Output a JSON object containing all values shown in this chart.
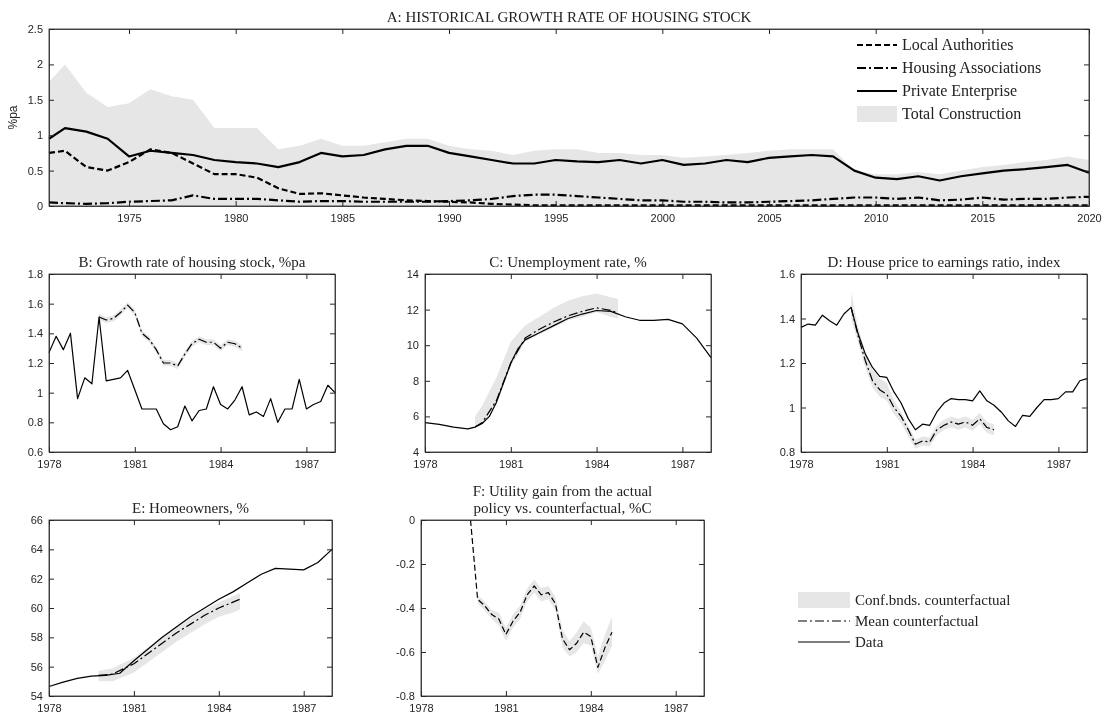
{
  "chart_data": [
    {
      "type": "line",
      "title": "A: HISTORICAL GROWTH RATE OF HOUSING STOCK",
      "ylabel": "%pa",
      "xlim": [
        1971.25,
        2020
      ],
      "ylim": [
        0,
        2.5
      ],
      "xticks": [
        1975,
        1980,
        1985,
        1990,
        1995,
        2000,
        2005,
        2010,
        2015,
        2020
      ],
      "yticks": [
        0,
        0.5,
        1,
        1.5,
        2,
        2.5
      ],
      "legend": "top right",
      "x": [
        1971.25,
        1972,
        1973,
        1974,
        1975,
        1976,
        1977,
        1978,
        1979,
        1980,
        1981,
        1982,
        1983,
        1984,
        1985,
        1986,
        1987,
        1988,
        1989,
        1990,
        1991,
        1992,
        1993,
        1994,
        1995,
        1996,
        1997,
        1998,
        1999,
        2000,
        2001,
        2002,
        2003,
        2004,
        2005,
        2006,
        2007,
        2008,
        2009,
        2010,
        2011,
        2012,
        2013,
        2014,
        2015,
        2016,
        2017,
        2018,
        2019,
        2020
      ],
      "series": [
        {
          "name": "Local Authorities",
          "type": "line",
          "line_style": "dashed",
          "color": "#000000",
          "values": [
            0.75,
            0.78,
            0.55,
            0.5,
            0.62,
            0.8,
            0.75,
            0.6,
            0.45,
            0.45,
            0.4,
            0.25,
            0.17,
            0.18,
            0.15,
            0.12,
            0.1,
            0.08,
            0.07,
            0.06,
            0.05,
            0.03,
            0.02,
            0.01,
            0.01,
            0.01,
            0.01,
            0.01,
            0.01,
            0.01,
            0.01,
            0.01,
            0.01,
            0.01,
            0.01,
            0.01,
            0.01,
            0.01,
            0.01,
            0.01,
            0.01,
            0.01,
            0.01,
            0.01,
            0.01,
            0.01,
            0.01,
            0.01,
            0.01,
            0.01
          ]
        },
        {
          "name": "Housing Associations",
          "type": "line",
          "line_style": "dashdot",
          "color": "#000000",
          "values": [
            0.05,
            0.04,
            0.03,
            0.04,
            0.06,
            0.07,
            0.08,
            0.15,
            0.1,
            0.1,
            0.1,
            0.08,
            0.06,
            0.07,
            0.07,
            0.06,
            0.06,
            0.06,
            0.06,
            0.07,
            0.08,
            0.1,
            0.14,
            0.16,
            0.16,
            0.14,
            0.12,
            0.1,
            0.08,
            0.08,
            0.06,
            0.06,
            0.05,
            0.05,
            0.06,
            0.07,
            0.08,
            0.1,
            0.12,
            0.12,
            0.1,
            0.12,
            0.08,
            0.09,
            0.12,
            0.09,
            0.1,
            0.1,
            0.12,
            0.13
          ]
        },
        {
          "name": "Private Enterprise",
          "type": "line",
          "line_style": "solid",
          "color": "#000000",
          "values": [
            0.95,
            1.1,
            1.05,
            0.95,
            0.7,
            0.78,
            0.75,
            0.72,
            0.65,
            0.62,
            0.6,
            0.55,
            0.62,
            0.75,
            0.7,
            0.72,
            0.8,
            0.85,
            0.85,
            0.75,
            0.7,
            0.65,
            0.6,
            0.6,
            0.65,
            0.63,
            0.62,
            0.65,
            0.6,
            0.65,
            0.58,
            0.6,
            0.65,
            0.62,
            0.68,
            0.7,
            0.72,
            0.7,
            0.5,
            0.4,
            0.38,
            0.42,
            0.36,
            0.42,
            0.46,
            0.5,
            0.52,
            0.55,
            0.58,
            0.47
          ]
        },
        {
          "name": "Total Construction",
          "type": "area",
          "color": "#e6e6e6",
          "values": [
            1.75,
            2.0,
            1.6,
            1.4,
            1.45,
            1.65,
            1.55,
            1.5,
            1.1,
            1.1,
            1.1,
            0.8,
            0.85,
            0.95,
            0.85,
            0.85,
            0.9,
            0.95,
            0.95,
            0.85,
            0.8,
            0.78,
            0.72,
            0.78,
            0.8,
            0.8,
            0.75,
            0.75,
            0.72,
            0.72,
            0.68,
            0.7,
            0.72,
            0.75,
            0.78,
            0.8,
            0.8,
            0.8,
            0.5,
            0.45,
            0.45,
            0.48,
            0.45,
            0.5,
            0.55,
            0.58,
            0.62,
            0.65,
            0.7,
            0.65
          ]
        }
      ]
    },
    {
      "type": "line",
      "title": "B: Growth rate of housing stock, %pa",
      "xlim": [
        1978,
        1988
      ],
      "ylim": [
        0.6,
        1.8
      ],
      "xticks": [
        1978,
        1981,
        1984,
        1987
      ],
      "yticks": [
        0.6,
        0.8,
        1,
        1.2,
        1.4,
        1.6,
        1.8
      ],
      "series": [
        {
          "type": "line",
          "line_style": "dashdot",
          "color": "#000000",
          "x": [
            1979.75,
            1980,
            1980.25,
            1980.5,
            1980.75,
            1981,
            1981.25,
            1981.5,
            1981.75,
            1982,
            1982.25,
            1982.5,
            1982.75,
            1983,
            1983.25,
            1983.5,
            1983.75,
            1984,
            1984.25,
            1984.5,
            1984.75
          ],
          "values": [
            1.51,
            1.49,
            1.5,
            1.54,
            1.59,
            1.54,
            1.4,
            1.36,
            1.29,
            1.2,
            1.2,
            1.18,
            1.26,
            1.33,
            1.36,
            1.34,
            1.34,
            1.3,
            1.34,
            1.33,
            1.3
          ],
          "lower": [
            1.49,
            1.47,
            1.48,
            1.52,
            1.57,
            1.52,
            1.38,
            1.34,
            1.27,
            1.18,
            1.18,
            1.16,
            1.24,
            1.31,
            1.34,
            1.32,
            1.32,
            1.28,
            1.32,
            1.31,
            1.28
          ],
          "upper": [
            1.53,
            1.51,
            1.52,
            1.56,
            1.61,
            1.56,
            1.42,
            1.38,
            1.31,
            1.22,
            1.22,
            1.2,
            1.28,
            1.35,
            1.38,
            1.36,
            1.36,
            1.32,
            1.36,
            1.35,
            1.32
          ]
        },
        {
          "type": "line",
          "line_style": "solid",
          "color": "#000000",
          "x": [
            1978,
            1978.25,
            1978.5,
            1978.75,
            1979,
            1979.25,
            1979.5,
            1979.75,
            1980,
            1980.25,
            1980.5,
            1980.75,
            1981,
            1981.25,
            1981.5,
            1981.75,
            1982,
            1982.25,
            1982.5,
            1982.75,
            1983,
            1983.25,
            1983.5,
            1983.75,
            1984,
            1984.25,
            1984.5,
            1984.75,
            1985,
            1985.25,
            1985.5,
            1985.75,
            1986,
            1986.25,
            1986.5,
            1986.75,
            1987,
            1987.25,
            1987.5,
            1987.75,
            1988
          ],
          "values": [
            1.27,
            1.38,
            1.29,
            1.4,
            0.96,
            1.1,
            1.06,
            1.51,
            1.08,
            1.09,
            1.1,
            1.15,
            1.02,
            0.89,
            0.89,
            0.89,
            0.79,
            0.75,
            0.77,
            0.91,
            0.81,
            0.88,
            0.89,
            1.04,
            0.92,
            0.89,
            0.95,
            1.04,
            0.85,
            0.87,
            0.84,
            0.96,
            0.8,
            0.89,
            0.89,
            1.09,
            0.89,
            0.92,
            0.94,
            1.05,
            1.0
          ]
        }
      ]
    },
    {
      "type": "line",
      "title": "C: Unemployment rate, %",
      "xlim": [
        1978,
        1988
      ],
      "ylim": [
        4,
        14
      ],
      "xticks": [
        1978,
        1981,
        1984,
        1987
      ],
      "yticks": [
        4,
        6,
        8,
        10,
        12,
        14
      ],
      "series": [
        {
          "type": "line",
          "line_style": "dashdot",
          "color": "#000000",
          "x": [
            1979.75,
            1980,
            1980.5,
            1981,
            1981.5,
            1982,
            1982.5,
            1983,
            1983.5,
            1984,
            1984.5,
            1984.75
          ],
          "values": [
            5.4,
            5.65,
            6.9,
            9.0,
            10.4,
            10.9,
            11.3,
            11.65,
            11.9,
            12.1,
            11.95,
            11.8
          ],
          "lower": [
            5.3,
            5.55,
            6.7,
            8.8,
            10.2,
            10.6,
            11.0,
            11.4,
            11.6,
            11.85,
            11.6,
            11.5
          ],
          "upper": [
            6.0,
            6.6,
            8.2,
            10.2,
            11.1,
            11.6,
            12.1,
            12.5,
            12.75,
            12.9,
            12.7,
            12.6
          ]
        },
        {
          "type": "line",
          "line_style": "solid",
          "color": "#000000",
          "x": [
            1978,
            1978.5,
            1979,
            1979.5,
            1979.75,
            1980,
            1980.25,
            1980.5,
            1980.75,
            1981,
            1981.25,
            1981.5,
            1982,
            1982.5,
            1983,
            1983.5,
            1984,
            1984.5,
            1985,
            1985.5,
            1986,
            1986.5,
            1987,
            1987.5,
            1988
          ],
          "values": [
            5.65,
            5.55,
            5.4,
            5.3,
            5.4,
            5.6,
            6.0,
            6.8,
            7.9,
            9.0,
            9.8,
            10.3,
            10.7,
            11.1,
            11.5,
            11.75,
            11.95,
            11.9,
            11.6,
            11.4,
            11.4,
            11.45,
            11.2,
            10.4,
            9.3
          ]
        }
      ]
    },
    {
      "type": "line",
      "title": "D: House price to earnings ratio, index",
      "xlim": [
        1978,
        1988
      ],
      "ylim": [
        0.8,
        1.6
      ],
      "xticks": [
        1978,
        1981,
        1984,
        1987
      ],
      "yticks": [
        0.8,
        1,
        1.2,
        1.4,
        1.6
      ],
      "series": [
        {
          "type": "line",
          "line_style": "dashdot",
          "color": "#000000",
          "x": [
            1979.75,
            1980,
            1980.25,
            1980.5,
            1980.75,
            1981,
            1981.25,
            1981.5,
            1981.75,
            1982,
            1982.25,
            1982.5,
            1982.75,
            1983,
            1983.25,
            1983.5,
            1983.75,
            1984,
            1984.25,
            1984.5,
            1984.75
          ],
          "values": [
            1.45,
            1.32,
            1.21,
            1.12,
            1.08,
            1.06,
            1.0,
            0.96,
            0.9,
            0.835,
            0.85,
            0.845,
            0.9,
            0.92,
            0.935,
            0.925,
            0.935,
            0.92,
            0.95,
            0.91,
            0.9
          ],
          "lower": [
            1.4,
            1.29,
            1.18,
            1.09,
            1.05,
            1.03,
            0.97,
            0.93,
            0.87,
            0.815,
            0.83,
            0.825,
            0.875,
            0.9,
            0.91,
            0.9,
            0.91,
            0.895,
            0.925,
            0.885,
            0.875
          ],
          "upper": [
            1.52,
            1.36,
            1.25,
            1.17,
            1.13,
            1.11,
            1.03,
            0.98,
            0.92,
            0.855,
            0.87,
            0.865,
            0.92,
            0.945,
            0.96,
            0.95,
            0.96,
            0.945,
            0.975,
            0.935,
            0.925
          ]
        },
        {
          "type": "line",
          "line_style": "solid",
          "color": "#000000",
          "x": [
            1978,
            1978.25,
            1978.5,
            1978.75,
            1979,
            1979.25,
            1979.5,
            1979.75,
            1980,
            1980.25,
            1980.5,
            1980.75,
            1981,
            1981.25,
            1981.5,
            1981.75,
            1982,
            1982.25,
            1982.5,
            1982.75,
            1983,
            1983.25,
            1983.5,
            1983.75,
            1984,
            1984.25,
            1984.5,
            1984.75,
            1985,
            1985.25,
            1985.5,
            1985.75,
            1986,
            1986.25,
            1986.5,
            1986.75,
            1987,
            1987.25,
            1987.5,
            1987.75,
            1988
          ],
          "values": [
            1.36,
            1.375,
            1.37,
            1.415,
            1.39,
            1.37,
            1.42,
            1.45,
            1.33,
            1.24,
            1.18,
            1.14,
            1.135,
            1.07,
            1.02,
            0.95,
            0.9,
            0.925,
            0.92,
            0.98,
            1.02,
            1.04,
            1.035,
            1.035,
            1.03,
            1.075,
            1.03,
            1.01,
            0.98,
            0.94,
            0.915,
            0.965,
            0.96,
            1.0,
            1.035,
            1.035,
            1.04,
            1.07,
            1.07,
            1.12,
            1.13
          ]
        }
      ]
    },
    {
      "type": "line",
      "title": "E: Homeowners, %",
      "xlim": [
        1978,
        1988
      ],
      "ylim": [
        54,
        66
      ],
      "xticks": [
        1978,
        1981,
        1984,
        1987
      ],
      "yticks": [
        54,
        56,
        58,
        60,
        62,
        64,
        66
      ],
      "legend": "right",
      "annotations": [
        "Conf.bnds. counterfactual"
      ],
      "series": [
        {
          "name": "Mean counterfactual",
          "type": "line",
          "line_style": "dashdot",
          "color": "#000000",
          "x": [
            1979.75,
            1980.25,
            1981,
            1981.5,
            1982,
            1982.5,
            1983,
            1983.5,
            1984,
            1984.5,
            1984.75
          ],
          "values": [
            55.4,
            55.5,
            56.2,
            56.9,
            57.6,
            58.3,
            58.9,
            59.5,
            60.0,
            60.4,
            60.6
          ],
          "lower": [
            55.0,
            55.0,
            55.6,
            56.3,
            57.0,
            57.7,
            58.3,
            58.9,
            59.4,
            59.7,
            59.9
          ],
          "upper": [
            55.7,
            55.9,
            56.6,
            57.3,
            58.0,
            58.7,
            59.3,
            59.9,
            60.4,
            60.8,
            61.0
          ]
        },
        {
          "name": "Data",
          "type": "line",
          "line_style": "solid",
          "color": "#000000",
          "x": [
            1978,
            1978.5,
            1979,
            1979.5,
            1980,
            1980.5,
            1981,
            1981.5,
            1982,
            1982.5,
            1983,
            1983.5,
            1984,
            1984.5,
            1985,
            1985.5,
            1986,
            1986.5,
            1987,
            1987.5,
            1988
          ],
          "values": [
            54.65,
            54.95,
            55.2,
            55.35,
            55.4,
            55.55,
            56.4,
            57.2,
            58.0,
            58.7,
            59.4,
            60.0,
            60.6,
            61.1,
            61.7,
            62.3,
            62.7,
            62.65,
            62.6,
            63.1,
            64.0
          ]
        }
      ]
    },
    {
      "type": "line",
      "title": "F: Utility gain from the actual policy vs. counterfactual, %C",
      "xlim": [
        1978,
        1988
      ],
      "ylim": [
        -0.8,
        0
      ],
      "xticks": [
        1978,
        1981,
        1984,
        1987
      ],
      "yticks": [
        -0.8,
        -0.6,
        -0.4,
        -0.2,
        0
      ],
      "series": [
        {
          "type": "line",
          "line_style": "dashed",
          "color": "#000000",
          "x": [
            1979.75,
            1980,
            1980.25,
            1980.5,
            1980.75,
            1981,
            1981.25,
            1981.5,
            1981.75,
            1982,
            1982.25,
            1982.5,
            1982.75,
            1983,
            1983.25,
            1983.5,
            1983.75,
            1984,
            1984.25,
            1984.5,
            1984.75
          ],
          "values": [
            0,
            -0.36,
            -0.39,
            -0.43,
            -0.45,
            -0.52,
            -0.46,
            -0.42,
            -0.34,
            -0.3,
            -0.34,
            -0.33,
            -0.38,
            -0.54,
            -0.59,
            -0.56,
            -0.51,
            -0.53,
            -0.67,
            -0.58,
            -0.51
          ],
          "lower": [
            null,
            -0.38,
            -0.41,
            -0.45,
            -0.48,
            -0.55,
            -0.49,
            -0.45,
            -0.37,
            -0.33,
            -0.37,
            -0.36,
            -0.41,
            -0.58,
            -0.62,
            -0.6,
            -0.56,
            -0.57,
            -0.7,
            -0.64,
            -0.57
          ],
          "upper": [
            null,
            -0.34,
            -0.37,
            -0.41,
            -0.42,
            -0.49,
            -0.43,
            -0.39,
            -0.31,
            -0.27,
            -0.31,
            -0.3,
            -0.35,
            -0.5,
            -0.55,
            -0.51,
            -0.46,
            -0.49,
            -0.62,
            -0.52,
            -0.44
          ]
        }
      ]
    }
  ]
}
